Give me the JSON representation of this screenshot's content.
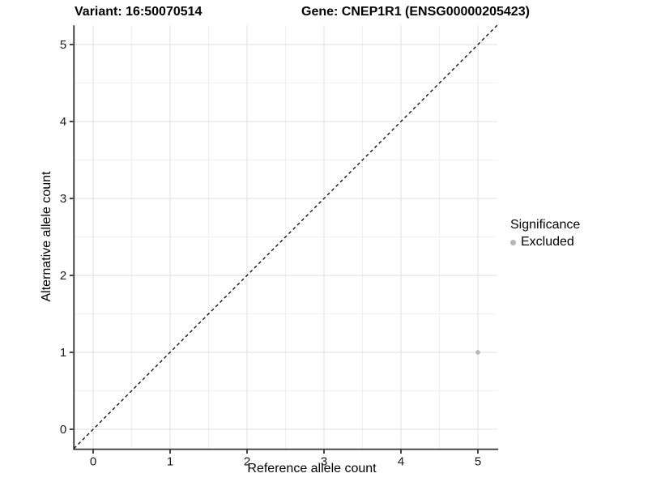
{
  "header": {
    "left_title": "Variant: 16:50070514",
    "right_title": "Gene: CNEP1R1 (ENSG00000205423)"
  },
  "chart_data": {
    "type": "scatter",
    "xlabel": "Reference allele count",
    "ylabel": "Alternative allele count",
    "xlim": [
      -0.25,
      5.25
    ],
    "ylim": [
      -0.25,
      5.25
    ],
    "x_ticks": [
      0,
      1,
      2,
      3,
      4,
      5
    ],
    "y_ticks": [
      0,
      1,
      2,
      3,
      4,
      5
    ],
    "grid": {
      "major_color": "#e4e4e4",
      "minor_color": "#f0f0f0",
      "minor_step": 0.5
    },
    "axis_color": "#333333",
    "tick_label_color": "#1a1a1a",
    "identity_line": {
      "from": [
        -0.25,
        -0.25
      ],
      "to": [
        5.25,
        5.25
      ],
      "style": "dashed",
      "color": "#000000"
    },
    "points": [
      {
        "x": 5,
        "y": 1,
        "series": "Excluded"
      }
    ],
    "series_colors": {
      "Excluded": "#b5b5b5"
    },
    "legend": {
      "title": "Significance",
      "position": "right",
      "items": [
        {
          "label": "Excluded",
          "color": "#b5b5b5"
        }
      ]
    }
  }
}
